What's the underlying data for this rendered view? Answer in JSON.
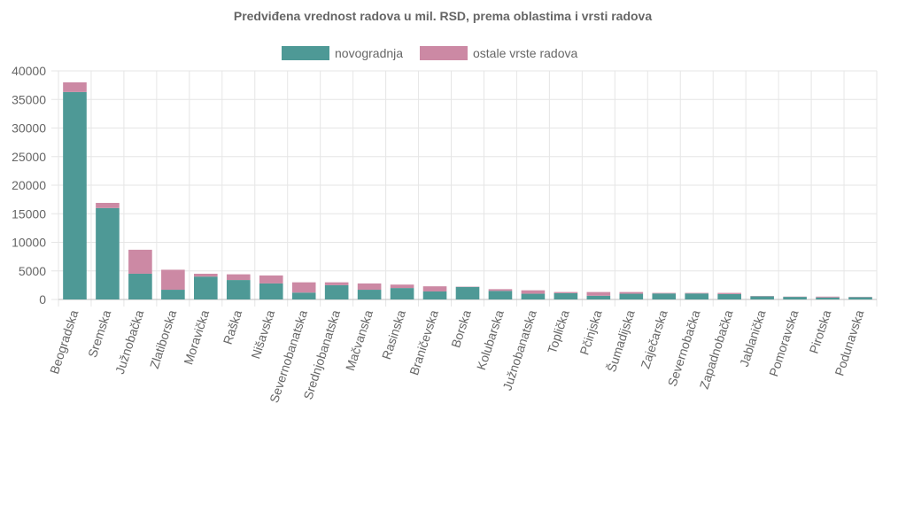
{
  "chart_data": {
    "type": "bar",
    "stacked": true,
    "title": "Predviđena vrednost radova u mil. RSD, prema oblastima i vrsti radova",
    "xlabel": "",
    "ylabel": "",
    "ylim": [
      0,
      40000
    ],
    "yticks": [
      0,
      5000,
      10000,
      15000,
      20000,
      25000,
      30000,
      35000,
      40000
    ],
    "grid": true,
    "legend_position": "top",
    "categories": [
      "Beogradska",
      "Sremska",
      "Južnobačka",
      "Zlatiborska",
      "Moravička",
      "Raška",
      "Nišavska",
      "Severnobanatska",
      "Srednjobanatska",
      "Mačvanska",
      "Rasinska",
      "Braničevska",
      "Borska",
      "Kolubarska",
      "Južnobanatska",
      "Toplička",
      "Pčinjska",
      "Šumadijska",
      "Zaječarska",
      "Severnobačka",
      "Zapadnobačka",
      "Jablanička",
      "Pomoravska",
      "Pirotska",
      "Podunavska"
    ],
    "series": [
      {
        "name": "novogradnja",
        "color": "#4e9996",
        "values": [
          36300,
          16000,
          4500,
          1700,
          4000,
          3400,
          2800,
          1200,
          2500,
          1700,
          2000,
          1400,
          2200,
          1500,
          1000,
          1100,
          650,
          1000,
          1050,
          1050,
          950,
          550,
          450,
          350,
          400
        ]
      },
      {
        "name": "ostale vrste radova",
        "color": "#cc89a4",
        "values": [
          1700,
          900,
          4200,
          3500,
          500,
          1000,
          1400,
          1800,
          500,
          1100,
          600,
          900,
          50,
          300,
          600,
          200,
          650,
          300,
          100,
          100,
          200,
          50,
          50,
          150,
          50
        ]
      }
    ]
  }
}
